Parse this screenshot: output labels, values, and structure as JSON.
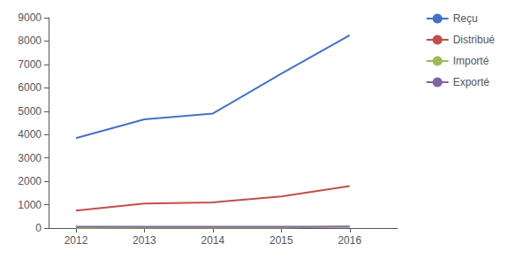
{
  "chart_data": {
    "type": "line",
    "x": [
      2012,
      2013,
      2014,
      2015,
      2016
    ],
    "series": [
      {
        "name": "Reçu",
        "color": "#4472C4",
        "values": [
          3850,
          4650,
          4900,
          6600,
          8250
        ]
      },
      {
        "name": "Distribué",
        "color": "#C0504D",
        "values": [
          750,
          1050,
          1100,
          1350,
          1800
        ]
      },
      {
        "name": "Importé",
        "color": "#9BBB59",
        "values": [
          10,
          15,
          15,
          15,
          80
        ]
      },
      {
        "name": "Exporté",
        "color": "#8064A2",
        "values": [
          60,
          60,
          60,
          60,
          60
        ]
      }
    ],
    "xlim": [
      2011.6,
      2016.7
    ],
    "xticks": [
      2012,
      2013,
      2014,
      2015,
      2016
    ],
    "ylim": [
      0,
      9000
    ],
    "yticks": [
      0,
      1000,
      2000,
      3000,
      4000,
      5000,
      6000,
      7000,
      8000,
      9000
    ],
    "grid": false,
    "legend": "right"
  }
}
